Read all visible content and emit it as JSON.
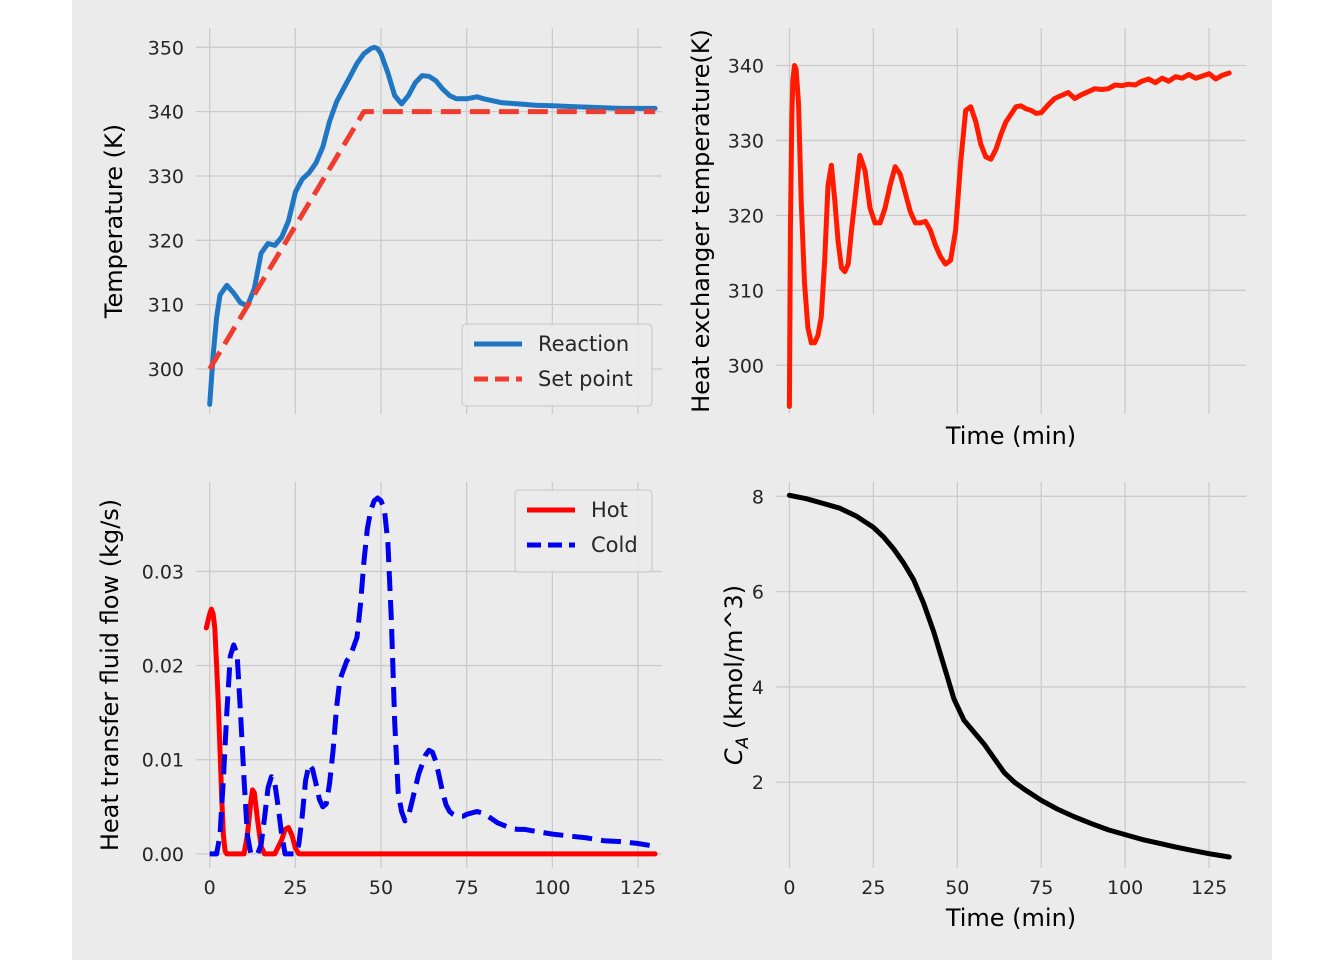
{
  "chart_data": [
    {
      "id": "tl",
      "type": "line",
      "title": "",
      "xlabel": "",
      "ylabel": "Temperature (K)",
      "xlim": [
        -4,
        132
      ],
      "ylim": [
        293,
        353
      ],
      "xticks": [
        0,
        25,
        50,
        75,
        100,
        125
      ],
      "show_xtick_labels": false,
      "yticks": [
        300,
        310,
        320,
        330,
        340,
        350
      ],
      "grid": true,
      "legend": "lower-right",
      "series": [
        {
          "name": "Reaction",
          "color": "#1f77c4",
          "dash": "solid",
          "x": [
            0,
            1,
            2,
            3,
            5,
            7,
            9,
            11,
            13,
            15,
            17,
            19,
            21,
            23,
            25,
            27,
            29,
            31,
            33,
            35,
            37,
            39,
            41,
            43,
            45,
            47,
            48,
            49,
            50,
            52,
            54,
            56,
            58,
            60,
            62,
            64,
            66,
            68,
            70,
            72,
            75,
            78,
            80,
            85,
            90,
            95,
            100,
            105,
            110,
            115,
            120,
            125,
            130
          ],
          "y": [
            294.5,
            302,
            308,
            311.5,
            313,
            311.8,
            310.3,
            309.8,
            312.5,
            318,
            319.5,
            319.2,
            320.5,
            323,
            327.5,
            329.5,
            330.5,
            332,
            334.5,
            338.5,
            341.5,
            343.5,
            345.5,
            347.5,
            349,
            349.8,
            350,
            349.8,
            349,
            346,
            342.5,
            341.2,
            342.5,
            344.5,
            345.6,
            345.5,
            344.8,
            343.5,
            342.5,
            342,
            342,
            342.3,
            342,
            341.4,
            341.2,
            341,
            340.9,
            340.8,
            340.7,
            340.6,
            340.5,
            340.5,
            340.5
          ]
        },
        {
          "name": "Set point",
          "color": "#f03c2e",
          "dash": "dashed",
          "x": [
            0,
            45,
            130
          ],
          "y": [
            300,
            340,
            340
          ]
        }
      ]
    },
    {
      "id": "tr",
      "type": "line",
      "title": "",
      "xlabel": "Time (min)",
      "ylabel": "Heat exchanger temperature(K)",
      "xlim": [
        -4,
        136
      ],
      "ylim": [
        293.5,
        345
      ],
      "xticks": [
        0,
        25,
        50,
        75,
        100,
        125
      ],
      "show_xtick_labels": false,
      "yticks": [
        300,
        310,
        320,
        330,
        340
      ],
      "grid": true,
      "series": [
        {
          "name": "",
          "color": "#ff1a00",
          "dash": "solid",
          "x": [
            0,
            0.3,
            0.7,
            1,
            1.5,
            2,
            2.7,
            3.5,
            4.5,
            5.5,
            6.5,
            7.5,
            8.5,
            9.5,
            10.5,
            11.5,
            12.5,
            13.5,
            14.5,
            15.5,
            16.5,
            17.5,
            18.5,
            19.5,
            21,
            22.5,
            24,
            25.5,
            27,
            28.5,
            30,
            31.5,
            33,
            34.5,
            36,
            37.5,
            39,
            40.5,
            42,
            43.5,
            45,
            46.5,
            48,
            49.5,
            51,
            52.5,
            54,
            55.5,
            57,
            58.5,
            60,
            61.5,
            63,
            64.5,
            66,
            67.5,
            69,
            70.5,
            72,
            73.5,
            75,
            77,
            79,
            81,
            83,
            85,
            87,
            89,
            91,
            93,
            95,
            97,
            99,
            101,
            103,
            105,
            107,
            109,
            111,
            113,
            115,
            117,
            119,
            121,
            123,
            125,
            127,
            129,
            131
          ],
          "y": [
            294.5,
            318,
            333,
            338,
            340,
            339.5,
            335,
            322,
            311,
            305,
            303,
            303,
            304,
            306.5,
            314,
            324,
            326.7,
            322,
            316.5,
            313,
            312.5,
            313.5,
            318,
            322,
            328,
            326,
            321,
            319,
            319,
            321,
            324,
            326.5,
            325.5,
            323,
            320.5,
            319,
            319,
            319.2,
            318,
            316,
            314.5,
            313.5,
            314,
            318,
            327,
            334,
            334.5,
            332.5,
            329.5,
            327.8,
            327.5,
            328.8,
            330.8,
            332.5,
            333.5,
            334.5,
            334.6,
            334.2,
            334,
            333.6,
            333.7,
            334.7,
            335.6,
            336,
            336.4,
            335.6,
            336.1,
            336.5,
            336.9,
            336.8,
            336.9,
            337.4,
            337.3,
            337.5,
            337.4,
            337.9,
            338.2,
            337.7,
            338.3,
            337.9,
            338.5,
            338.3,
            338.8,
            338.3,
            338.6,
            338.9,
            338.2,
            338.7,
            339
          ]
        }
      ]
    },
    {
      "id": "bl",
      "type": "line",
      "title": "",
      "xlabel": "",
      "ylabel": "Heat transfer fluid flow (kg/s)",
      "xlim": [
        -4,
        132
      ],
      "ylim": [
        -0.0015,
        0.0395
      ],
      "xticks": [
        0,
        25,
        50,
        75,
        100,
        125
      ],
      "show_xtick_labels": true,
      "yticks": [
        0,
        0.01,
        0.02,
        0.03
      ],
      "ytick_labels": [
        "0.00",
        "0.01",
        "0.02",
        "0.03"
      ],
      "grid": true,
      "legend": "upper-right",
      "series": [
        {
          "name": "Hot",
          "color": "#ff0000",
          "dash": "solid",
          "x": [
            -1,
            0,
            0.5,
            1,
            1.5,
            2,
            2.5,
            3,
            3.5,
            4,
            4.5,
            5,
            10,
            11,
            12,
            12.5,
            13,
            13.5,
            14,
            15,
            16,
            19,
            21,
            22,
            23,
            24,
            25,
            26,
            60,
            130
          ],
          "y": [
            0.024,
            0.0255,
            0.026,
            0.0255,
            0.024,
            0.02,
            0.016,
            0.011,
            0.006,
            0.002,
            0.0003,
            0,
            0,
            0.002,
            0.0055,
            0.0068,
            0.0065,
            0.005,
            0.0035,
            0.0008,
            0,
            0,
            0.0015,
            0.0026,
            0.0028,
            0.002,
            0.0006,
            0,
            0,
            0
          ]
        },
        {
          "name": "Cold",
          "color": "#0000ee",
          "dash": "dashed",
          "x": [
            0,
            2,
            3,
            4,
            5,
            6,
            7,
            8,
            9,
            10,
            11,
            12,
            13,
            14,
            15,
            16,
            17,
            18,
            19,
            20,
            21,
            22,
            23,
            24,
            25,
            26,
            27,
            28,
            29,
            30,
            31,
            32,
            33,
            34,
            35,
            36,
            37,
            38,
            39,
            40,
            41,
            42,
            43,
            44,
            45,
            46,
            47,
            48,
            49,
            50,
            51,
            52,
            53,
            54,
            55,
            56,
            57,
            58,
            59,
            60,
            61,
            62,
            63,
            64,
            65,
            66,
            67,
            68,
            69,
            70,
            71,
            72,
            73,
            74,
            75,
            78,
            80,
            82,
            84,
            86,
            88,
            90,
            92,
            95,
            100,
            105,
            110,
            115,
            120,
            125,
            130
          ],
          "y": [
            0,
            0,
            0.002,
            0.008,
            0.015,
            0.021,
            0.0222,
            0.0212,
            0.015,
            0.008,
            0.002,
            0,
            0,
            0,
            0.001,
            0.0038,
            0.007,
            0.0082,
            0.0075,
            0.005,
            0.002,
            0,
            0,
            0,
            0,
            0.001,
            0.004,
            0.0078,
            0.0095,
            0.009,
            0.0075,
            0.0058,
            0.005,
            0.0053,
            0.0075,
            0.011,
            0.0155,
            0.0185,
            0.0195,
            0.0205,
            0.021,
            0.022,
            0.023,
            0.0265,
            0.031,
            0.0345,
            0.0365,
            0.0375,
            0.0378,
            0.0375,
            0.0365,
            0.033,
            0.025,
            0.014,
            0.0065,
            0.0045,
            0.0035,
            0.004,
            0.0055,
            0.007,
            0.0085,
            0.0095,
            0.0105,
            0.011,
            0.0108,
            0.0098,
            0.0082,
            0.0065,
            0.0052,
            0.0045,
            0.0042,
            0.004,
            0.004,
            0.004,
            0.0042,
            0.0045,
            0.0043,
            0.0038,
            0.0033,
            0.003,
            0.0027,
            0.0026,
            0.0026,
            0.0024,
            0.0021,
            0.0019,
            0.0017,
            0.0014,
            0.0013,
            0.0011,
            0.0008
          ]
        }
      ]
    },
    {
      "id": "br",
      "type": "line",
      "title": "",
      "xlabel": "Time (min)",
      "ylabel": "C_A (kmol/m^3)",
      "ylabel_main": "C",
      "ylabel_sub": "A",
      "ylabel_rest": " (kmol/m^3)",
      "xlim": [
        -4,
        136
      ],
      "ylim": [
        0.2,
        8.3
      ],
      "xticks": [
        0,
        25,
        50,
        75,
        100,
        125
      ],
      "show_xtick_labels": true,
      "yticks": [
        2,
        4,
        6,
        8
      ],
      "grid": true,
      "series": [
        {
          "name": "",
          "color": "#000000",
          "dash": "solid",
          "x": [
            0,
            5,
            10,
            15,
            20,
            25,
            28,
            31,
            34,
            37,
            40,
            43,
            46,
            49,
            52,
            55,
            58,
            61,
            64,
            67,
            70,
            75,
            80,
            85,
            90,
            95,
            100,
            105,
            110,
            115,
            120,
            125,
            131
          ],
          "y": [
            8.02,
            7.95,
            7.85,
            7.75,
            7.58,
            7.35,
            7.15,
            6.9,
            6.6,
            6.25,
            5.75,
            5.15,
            4.45,
            3.75,
            3.3,
            3.05,
            2.8,
            2.5,
            2.2,
            2.0,
            1.85,
            1.62,
            1.43,
            1.27,
            1.13,
            1.0,
            0.9,
            0.8,
            0.72,
            0.64,
            0.57,
            0.5,
            0.43
          ]
        }
      ]
    }
  ]
}
